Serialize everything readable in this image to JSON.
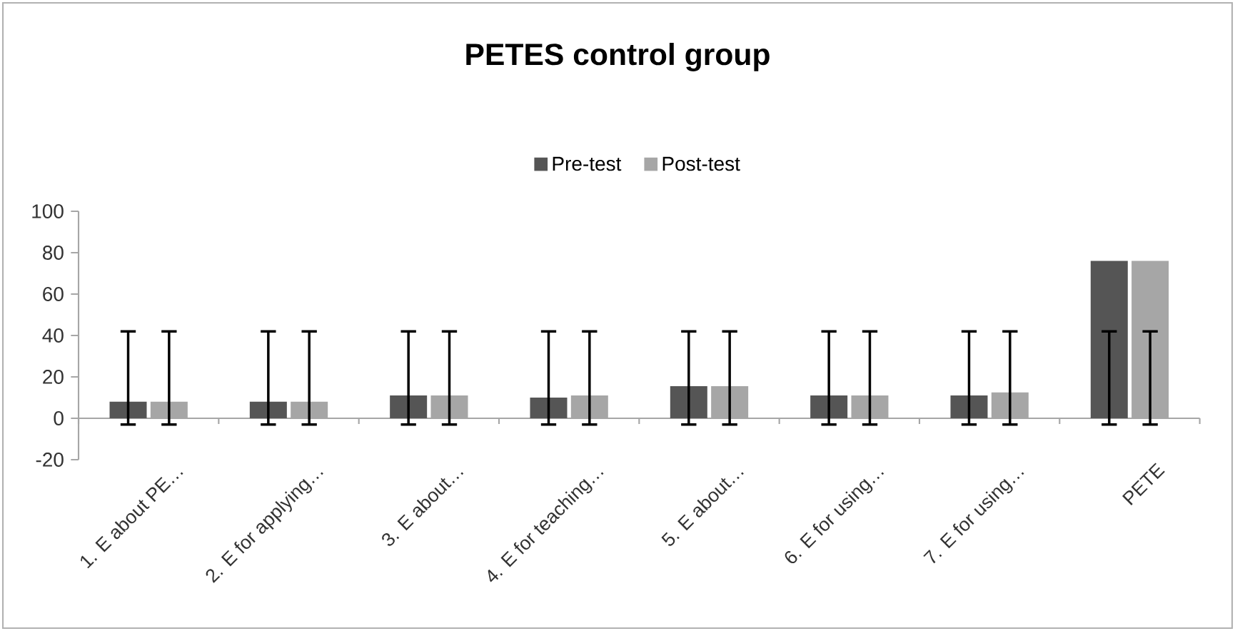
{
  "chart_data": {
    "type": "bar",
    "title": "PETES control group",
    "categories": [
      "1. E about PE…",
      "2. E for applying…",
      "3. E about…",
      "4. E for teaching…",
      "5. E about…",
      "6. E for using…",
      "7. E for using…",
      "PETE"
    ],
    "series": [
      {
        "name": "Pre-test",
        "color": "#555555",
        "values": [
          8,
          8,
          11,
          10,
          15.5,
          11,
          11,
          76
        ],
        "errors": [
          [
            -3,
            42
          ],
          [
            -3,
            42
          ],
          [
            -3,
            42
          ],
          [
            -3,
            42
          ],
          [
            -3,
            42
          ],
          [
            -3,
            42
          ],
          [
            -3,
            42
          ],
          [
            -3,
            42
          ]
        ]
      },
      {
        "name": "Post-test",
        "color": "#a6a6a6",
        "values": [
          8,
          8,
          11,
          11,
          15.5,
          11,
          12.5,
          76
        ],
        "errors": [
          [
            -3,
            42
          ],
          [
            -3,
            42
          ],
          [
            -3,
            42
          ],
          [
            -3,
            42
          ],
          [
            -3,
            42
          ],
          [
            -3,
            42
          ],
          [
            -3,
            42
          ],
          [
            -3,
            42
          ]
        ]
      }
    ],
    "ylim": [
      -20,
      100
    ],
    "yticks": [
      -20,
      0,
      20,
      40,
      60,
      80,
      100
    ],
    "legend": "top"
  }
}
